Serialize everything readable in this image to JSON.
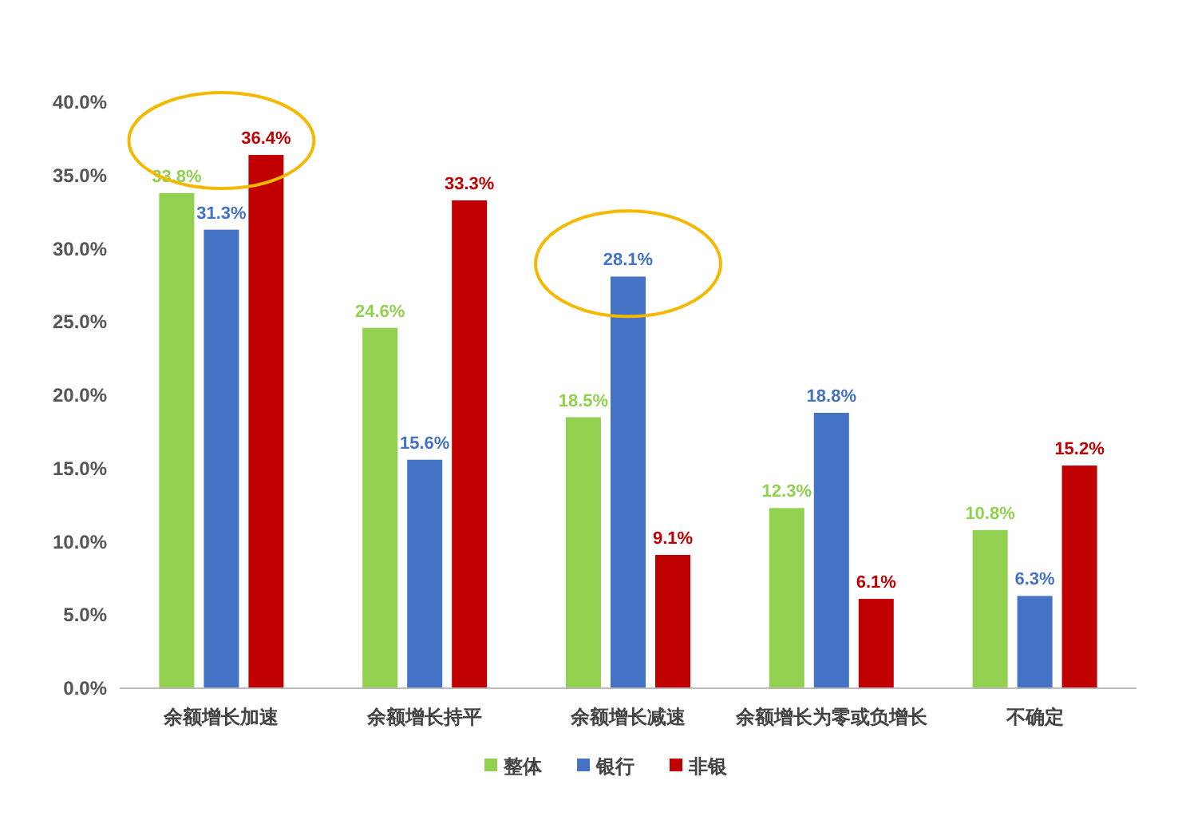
{
  "chart_data": {
    "type": "bar",
    "categories": [
      "余额增长加速",
      "余额增长持平",
      "余额增长减速",
      "余额增长为零或负增长",
      "不确定"
    ],
    "series": [
      {
        "name": "整体",
        "color": "#92d050",
        "values": [
          33.8,
          24.6,
          18.5,
          12.3,
          10.8
        ],
        "value_labels": [
          "33.8%",
          "24.6%",
          "18.5%",
          "12.3%",
          "10.8%"
        ]
      },
      {
        "name": "银行",
        "color": "#4472c4",
        "values": [
          31.3,
          15.6,
          28.1,
          18.8,
          6.3
        ],
        "value_labels": [
          "31.3%",
          "15.6%",
          "28.1%",
          "18.8%",
          "6.3%"
        ]
      },
      {
        "name": "非银",
        "color": "#c00000",
        "values": [
          36.4,
          33.3,
          9.1,
          6.1,
          15.2
        ],
        "value_labels": [
          "36.4%",
          "33.3%",
          "9.1%",
          "6.1%",
          "15.2%"
        ]
      }
    ],
    "ylim": [
      0,
      40
    ],
    "yticks": [
      {
        "value": 0,
        "label": "0.0%"
      },
      {
        "value": 5,
        "label": "5.0%"
      },
      {
        "value": 10,
        "label": "10.0%"
      },
      {
        "value": 15,
        "label": "15.0%"
      },
      {
        "value": 20,
        "label": "20.0%"
      },
      {
        "value": 25,
        "label": "25.0%"
      },
      {
        "value": 30,
        "label": "30.0%"
      },
      {
        "value": 35,
        "label": "35.0%"
      },
      {
        "value": 40,
        "label": "40.0%"
      }
    ],
    "grid": false,
    "legend": "bottom"
  }
}
